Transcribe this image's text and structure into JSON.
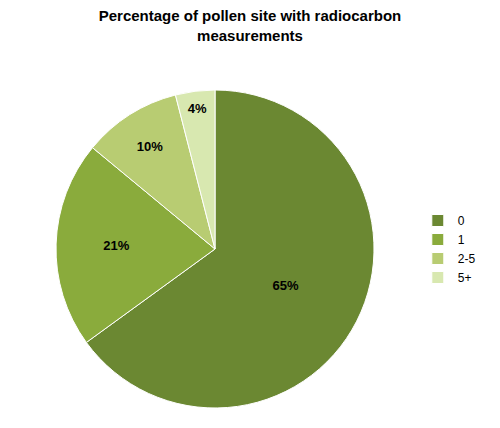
{
  "chart_data": {
    "type": "pie",
    "title": "Percentage of pollen site with radiocarbon\nmeasurements",
    "categories": [
      "0",
      "1",
      "2-5",
      "5+"
    ],
    "values": [
      65,
      21,
      10,
      4
    ],
    "value_labels": [
      "65%",
      "21%",
      "10%",
      "4%"
    ],
    "colors": [
      "#6b8832",
      "#8aab3c",
      "#b8cc72",
      "#d8e8b0"
    ],
    "data_labels": true,
    "legend": "right"
  }
}
